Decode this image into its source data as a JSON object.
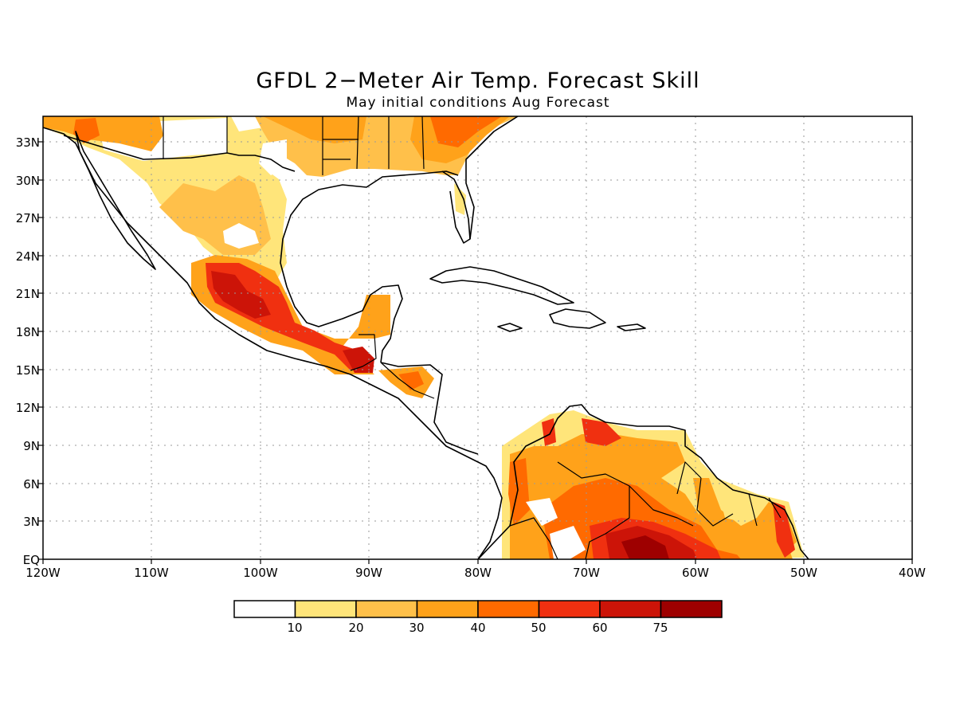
{
  "title": "GFDL 2−Meter Air Temp. Forecast Skill",
  "subtitle": "May initial conditions  Aug Forecast",
  "map": {
    "lon_range": [
      -120,
      -40
    ],
    "lat_range": [
      0,
      35
    ],
    "lat_ticks": [
      "33N",
      "30N",
      "27N",
      "24N",
      "21N",
      "18N",
      "15N",
      "12N",
      "9N",
      "6N",
      "3N",
      "EQ"
    ],
    "lon_ticks": [
      "120W",
      "110W",
      "100W",
      "90W",
      "80W",
      "70W",
      "60W",
      "50W",
      "40W"
    ],
    "grid": true,
    "colors": {
      "lt10": "#ffffff",
      "c10_20": "#ffe57a",
      "c20_30": "#ffc04a",
      "c30_40": "#ffa21a",
      "c40_50": "#ff6a00",
      "c50_60": "#f03010",
      "c60_75": "#cc1408",
      "c75p": "#9e0000"
    }
  },
  "colorbar": {
    "labels": [
      "10",
      "20",
      "30",
      "40",
      "50",
      "60",
      "75"
    ],
    "colors": [
      "#ffffff",
      "#ffe57a",
      "#ffc04a",
      "#ffa21a",
      "#ff6a00",
      "#f03010",
      "#cc1408",
      "#9e0000"
    ]
  }
}
